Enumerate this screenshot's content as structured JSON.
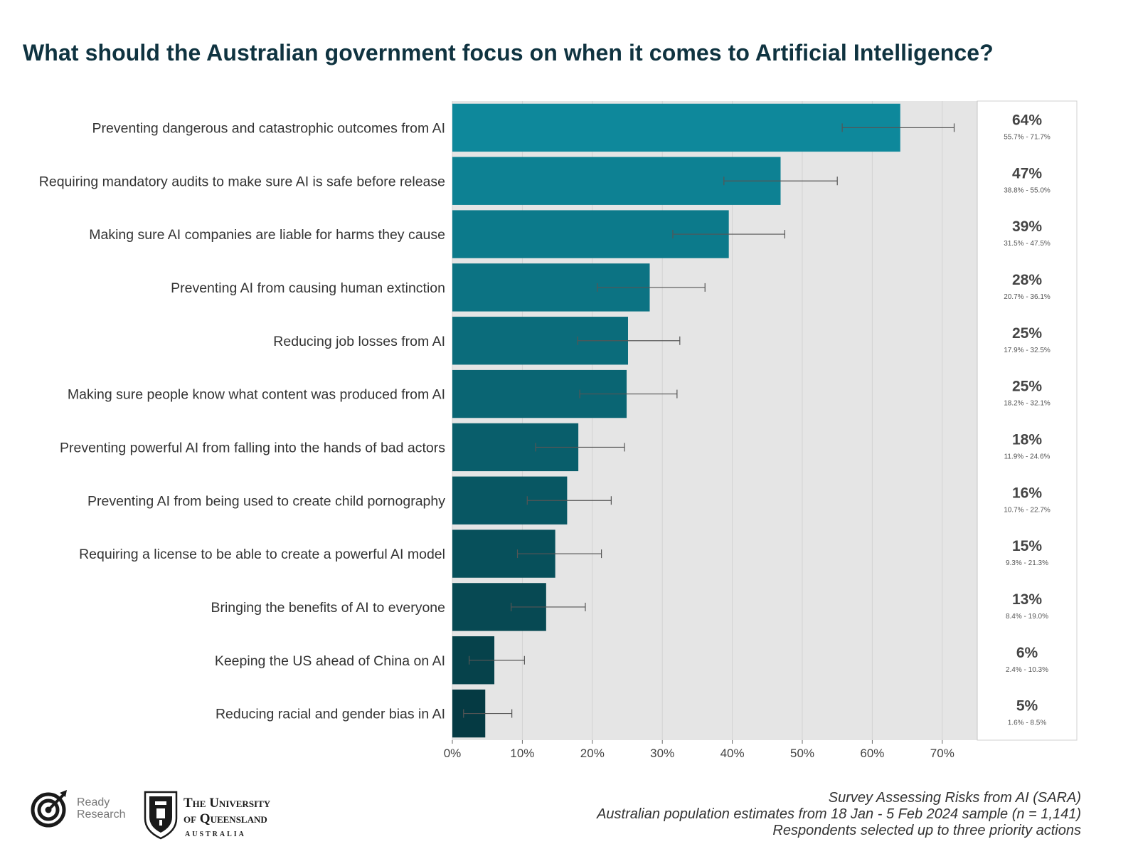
{
  "title": "What should the Australian government focus on when it comes to Artificial Intelligence?",
  "chart_data": {
    "type": "bar",
    "orientation": "horizontal",
    "title": "What should the Australian government focus on when it comes to Artificial Intelligence?",
    "xlabel": "",
    "ylabel": "",
    "xlim": [
      0,
      75
    ],
    "x_ticks": [
      0,
      10,
      20,
      30,
      40,
      50,
      60,
      70
    ],
    "x_tick_labels": [
      "0%",
      "10%",
      "20%",
      "30%",
      "40%",
      "50%",
      "60%",
      "70%"
    ],
    "grid": true,
    "categories": [
      "Preventing dangerous and catastrophic outcomes from AI",
      "Requiring mandatory audits to make sure AI is safe before release",
      "Making sure AI companies are liable for harms they cause",
      "Preventing AI from causing human extinction",
      "Reducing job losses from AI",
      "Making sure people know what content was produced from AI",
      "Preventing powerful AI from falling into the hands of bad actors",
      "Preventing AI from being used to create child pornography",
      "Requiring a license to be able to create a powerful AI model",
      "Bringing the benefits of AI to everyone",
      "Keeping the US ahead of China on AI",
      "Reducing racial and gender bias in AI"
    ],
    "values": [
      64.0,
      46.9,
      39.5,
      28.2,
      25.1,
      24.9,
      18.0,
      16.4,
      14.7,
      13.4,
      6.0,
      4.7
    ],
    "ci_low": [
      55.7,
      38.8,
      31.5,
      20.7,
      17.9,
      18.2,
      11.9,
      10.7,
      9.3,
      8.4,
      2.4,
      1.6
    ],
    "ci_high": [
      71.7,
      55.0,
      47.5,
      36.1,
      32.5,
      32.1,
      24.6,
      22.7,
      21.3,
      19.0,
      10.3,
      8.5
    ],
    "value_labels": [
      "64%",
      "47%",
      "39%",
      "28%",
      "25%",
      "25%",
      "18%",
      "16%",
      "15%",
      "13%",
      "6%",
      "5%"
    ],
    "ci_labels": [
      "55.7% - 71.7%",
      "38.8% - 55.0%",
      "31.5% - 47.5%",
      "20.7% - 36.1%",
      "17.9% - 32.5%",
      "18.2% - 32.1%",
      "11.9% - 24.6%",
      "10.7% - 22.7%",
      "9.3% - 21.3%",
      "8.4% - 19.0%",
      "2.4% - 10.3%",
      "1.6% - 8.5%"
    ],
    "bar_colors": [
      "#0e889b",
      "#0d8193",
      "#0c7a8b",
      "#0c7383",
      "#0b6c7b",
      "#0a6573",
      "#095e6b",
      "#085763",
      "#07505b",
      "#074953",
      "#06424b",
      "#053a43"
    ]
  },
  "colors": {
    "panel_bg": "#e5e5e5",
    "grid": "#d2d2d2",
    "title": "#0f3340",
    "error_bar": "#555555"
  },
  "logos": {
    "ready_research": [
      "Ready",
      "Research"
    ],
    "uq": [
      "The University",
      "of Queensland",
      "AUSTRALIA"
    ]
  },
  "source": [
    "Survey Assessing Risks from AI (SARA)",
    "Australian population estimates from 18 Jan - 5 Feb 2024 sample (n = 1,141)",
    "Respondents selected up to three priority actions"
  ]
}
